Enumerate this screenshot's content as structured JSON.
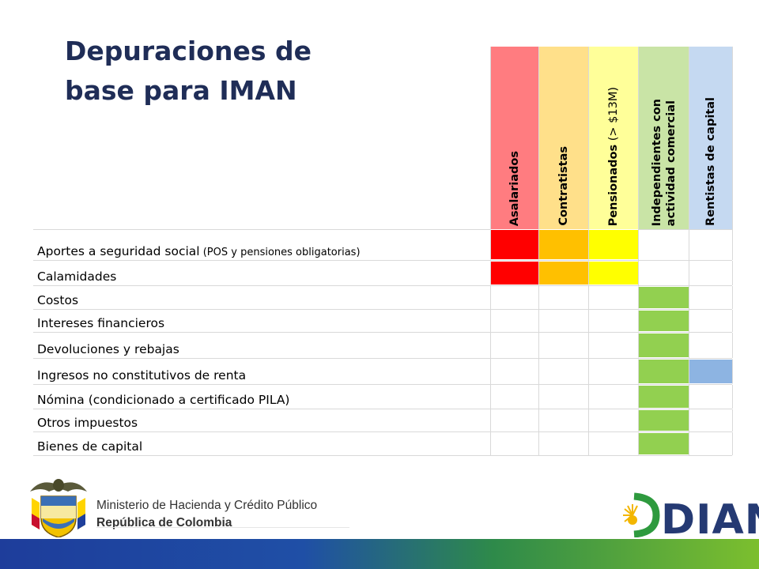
{
  "title": {
    "line1": "Depuraciones de",
    "line2": "base para IMAN"
  },
  "columns": [
    {
      "label": "Asalariados",
      "color": "#ff7c80"
    },
    {
      "label": "Contratistas",
      "color": "#ffe08a"
    },
    {
      "label_main": "Pensionados",
      "label_note": " (> $13M)",
      "color": "#ffff99"
    },
    {
      "label_line1": "Independientes con",
      "label_line2": "actividad comercial",
      "color": "#c9e4a6"
    },
    {
      "label": "Rentistas de capital",
      "color": "#c5d9f1"
    }
  ],
  "rows": [
    {
      "label": "Aportes a seguridad social",
      "note": " (POS y pensiones obligatorias)",
      "cells": [
        "#ff0000",
        "#ffc000",
        "#ffff00",
        "",
        ""
      ]
    },
    {
      "label": "Calamidades",
      "note": "",
      "cells": [
        "#ff0000",
        "#ffc000",
        "#ffff00",
        "",
        ""
      ]
    },
    {
      "label": "Costos",
      "note": "",
      "cells": [
        "",
        "",
        "",
        "#92d050",
        ""
      ]
    },
    {
      "label": "Intereses financieros",
      "note": "",
      "cells": [
        "",
        "",
        "",
        "#92d050",
        ""
      ]
    },
    {
      "label": "Devoluciones y rebajas",
      "note": "",
      "cells": [
        "",
        "",
        "",
        "#92d050",
        ""
      ]
    },
    {
      "label": "Ingresos no constitutivos de renta",
      "note": "",
      "cells": [
        "",
        "",
        "",
        "#92d050",
        "#8db4e2"
      ]
    },
    {
      "label": "Nómina (condicionado a certificado PILA)",
      "note": "",
      "cells": [
        "",
        "",
        "",
        "#92d050",
        ""
      ]
    },
    {
      "label": "Otros impuestos",
      "note": "",
      "cells": [
        "",
        "",
        "",
        "#92d050",
        ""
      ]
    },
    {
      "label": "Bienes de capital",
      "note": "",
      "cells": [
        "",
        "",
        "",
        "#92d050",
        ""
      ]
    }
  ],
  "footer": {
    "ministry_line1": "Ministerio de Hacienda y Crédito Público",
    "ministry_line2": "República de Colombia",
    "brand": "DIAN"
  },
  "colors": {
    "title": "#1f2d57",
    "brand": "#253a73",
    "band_start": "#1e3d9b",
    "band_end": "#7cbf2e"
  }
}
